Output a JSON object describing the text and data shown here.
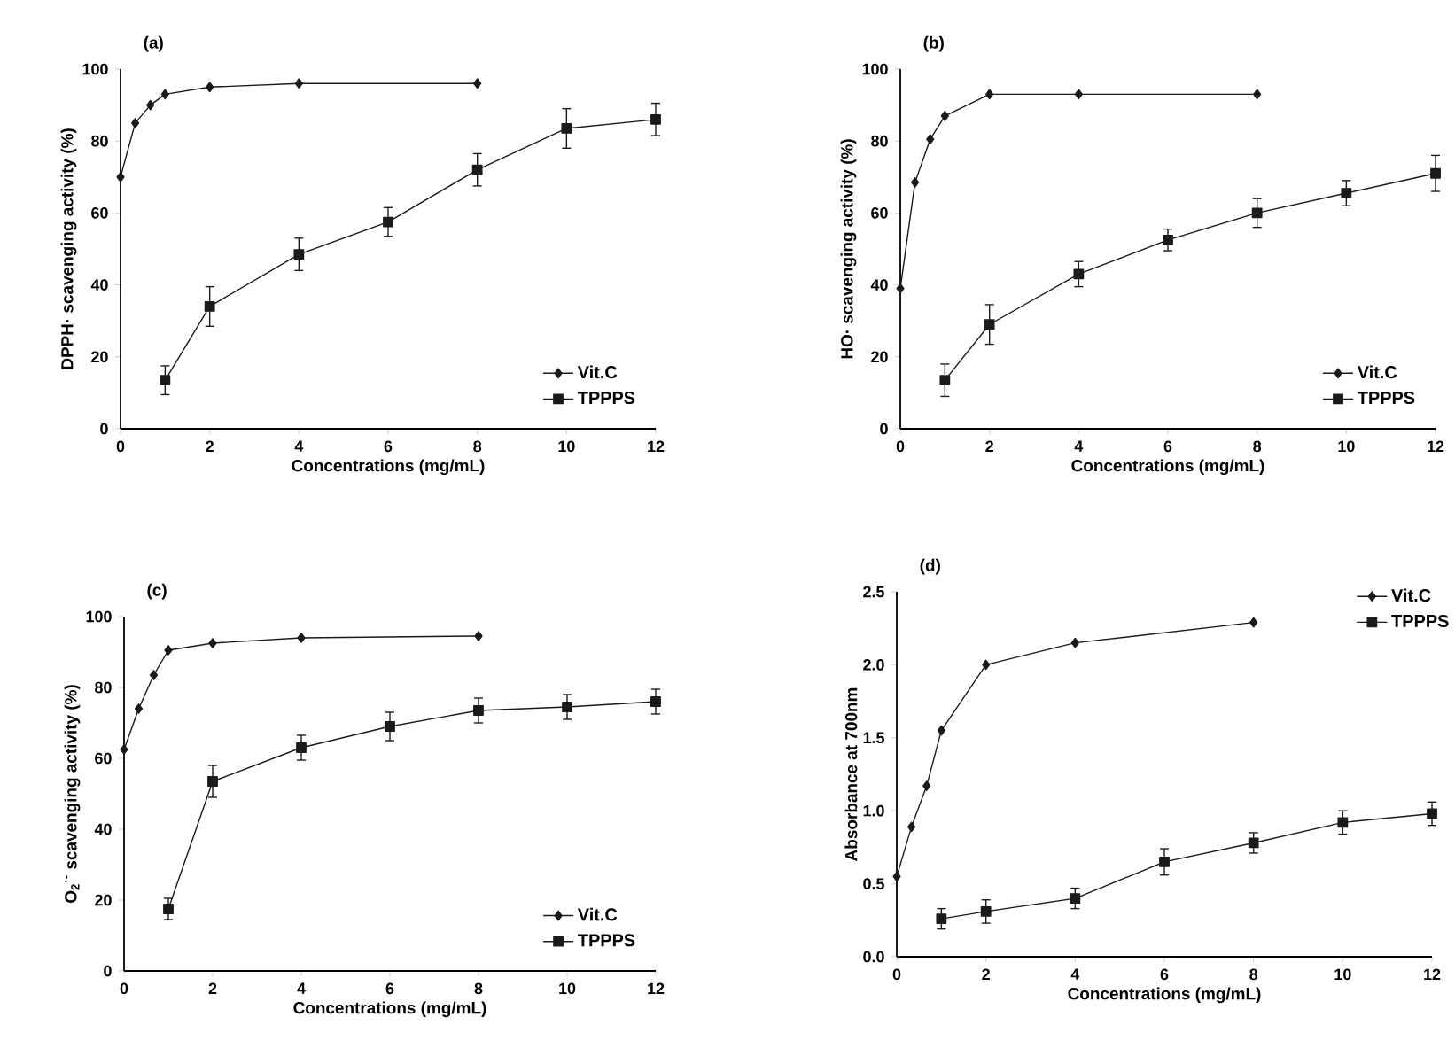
{
  "chart_data": [
    {
      "type": "line",
      "title": "(a)",
      "xlabel": "Concentrations (mg/mL)",
      "ylabel": "DPPH· scavenging activity (%)",
      "xlim": [
        0,
        12
      ],
      "ylim": [
        0,
        100
      ],
      "xticks": [
        0,
        2,
        4,
        6,
        8,
        10,
        12
      ],
      "yticks": [
        0,
        20,
        40,
        60,
        80,
        100
      ],
      "legend": "bottom right",
      "series": [
        {
          "name": "Vit.C",
          "color": "#1a1a1a",
          "marker": "diamond",
          "x": [
            0,
            0.33,
            0.67,
            1,
            2,
            4,
            8
          ],
          "values": [
            70,
            85,
            90,
            93,
            95,
            96,
            96
          ]
        },
        {
          "name": "TPPPS",
          "color": "#1a1a1a",
          "marker": "square",
          "x": [
            1,
            2,
            4,
            6,
            8,
            10,
            12
          ],
          "values": [
            13.5,
            34,
            48.5,
            57.5,
            72,
            83.5,
            86
          ],
          "errors": [
            4,
            5.5,
            4.5,
            4,
            4.5,
            5.5,
            4.5
          ]
        }
      ]
    },
    {
      "type": "line",
      "title": "(b)",
      "xlabel": "Concentrations (mg/mL)",
      "ylabel": "HO· scavenging activity (%)",
      "xlim": [
        0,
        12
      ],
      "ylim": [
        0,
        100
      ],
      "xticks": [
        0,
        2,
        4,
        6,
        8,
        10,
        12
      ],
      "yticks": [
        0,
        20,
        40,
        60,
        80,
        100
      ],
      "legend": "bottom right",
      "series": [
        {
          "name": "Vit.C",
          "color": "#1a1a1a",
          "marker": "diamond",
          "x": [
            0,
            0.33,
            0.67,
            1,
            2,
            4,
            8
          ],
          "values": [
            39,
            68.5,
            80.5,
            87,
            93,
            93,
            93
          ]
        },
        {
          "name": "TPPPS",
          "color": "#1a1a1a",
          "marker": "square",
          "x": [
            1,
            2,
            4,
            6,
            8,
            10,
            12
          ],
          "values": [
            13.5,
            29,
            43,
            52.5,
            60,
            65.5,
            71
          ],
          "errors": [
            4.5,
            5.5,
            3.5,
            3,
            4,
            3.5,
            5
          ]
        }
      ]
    },
    {
      "type": "line",
      "title": "(c)",
      "xlabel": "Concentrations (mg/mL)",
      "ylabel": "O$_{2}$$^{·-}$ scavenging activity (%)",
      "xlim": [
        0,
        12
      ],
      "ylim": [
        0,
        100
      ],
      "xticks": [
        0,
        2,
        4,
        6,
        8,
        10,
        12
      ],
      "yticks": [
        0,
        20,
        40,
        60,
        80,
        100
      ],
      "legend": "bottom right",
      "series": [
        {
          "name": "Vit.C",
          "color": "#1a1a1a",
          "marker": "diamond",
          "x": [
            0,
            0.33,
            0.67,
            1,
            2,
            4,
            8
          ],
          "values": [
            62.5,
            74,
            83.5,
            90.5,
            92.5,
            94,
            94.5
          ]
        },
        {
          "name": "TPPPS",
          "color": "#1a1a1a",
          "marker": "square",
          "x": [
            1,
            2,
            4,
            6,
            8,
            10,
            12
          ],
          "values": [
            17.5,
            53.5,
            63,
            69,
            73.5,
            74.5,
            76
          ],
          "errors": [
            3,
            4.5,
            3.5,
            4,
            3.5,
            3.5,
            3.5
          ]
        }
      ]
    },
    {
      "type": "line",
      "title": "(d)",
      "xlabel": "Concentrations (mg/mL)",
      "ylabel": "Absorbance at 700nm",
      "xlim": [
        0,
        12
      ],
      "ylim": [
        0,
        2.5
      ],
      "xticks": [
        0,
        2,
        4,
        6,
        8,
        10,
        12
      ],
      "yticks": [
        {
          "value": 0,
          "label": "0.0"
        },
        0.5,
        {
          "value": 1,
          "label": "1.0"
        },
        1.5,
        {
          "value": 2,
          "label": "2.0"
        },
        2.5
      ],
      "legend": "top right",
      "series": [
        {
          "name": "Vit.C",
          "color": "#1a1a1a",
          "marker": "diamond",
          "x": [
            0,
            0.33,
            0.67,
            1,
            2,
            4,
            8
          ],
          "values": [
            0.55,
            0.89,
            1.17,
            1.55,
            2.0,
            2.15,
            2.29
          ]
        },
        {
          "name": "TPPPS",
          "color": "#1a1a1a",
          "marker": "square",
          "x": [
            1,
            2,
            4,
            6,
            8,
            10,
            12
          ],
          "values": [
            0.26,
            0.31,
            0.4,
            0.65,
            0.78,
            0.92,
            0.98
          ],
          "errors": [
            0.07,
            0.08,
            0.07,
            0.09,
            0.07,
            0.08,
            0.08
          ]
        }
      ]
    }
  ]
}
